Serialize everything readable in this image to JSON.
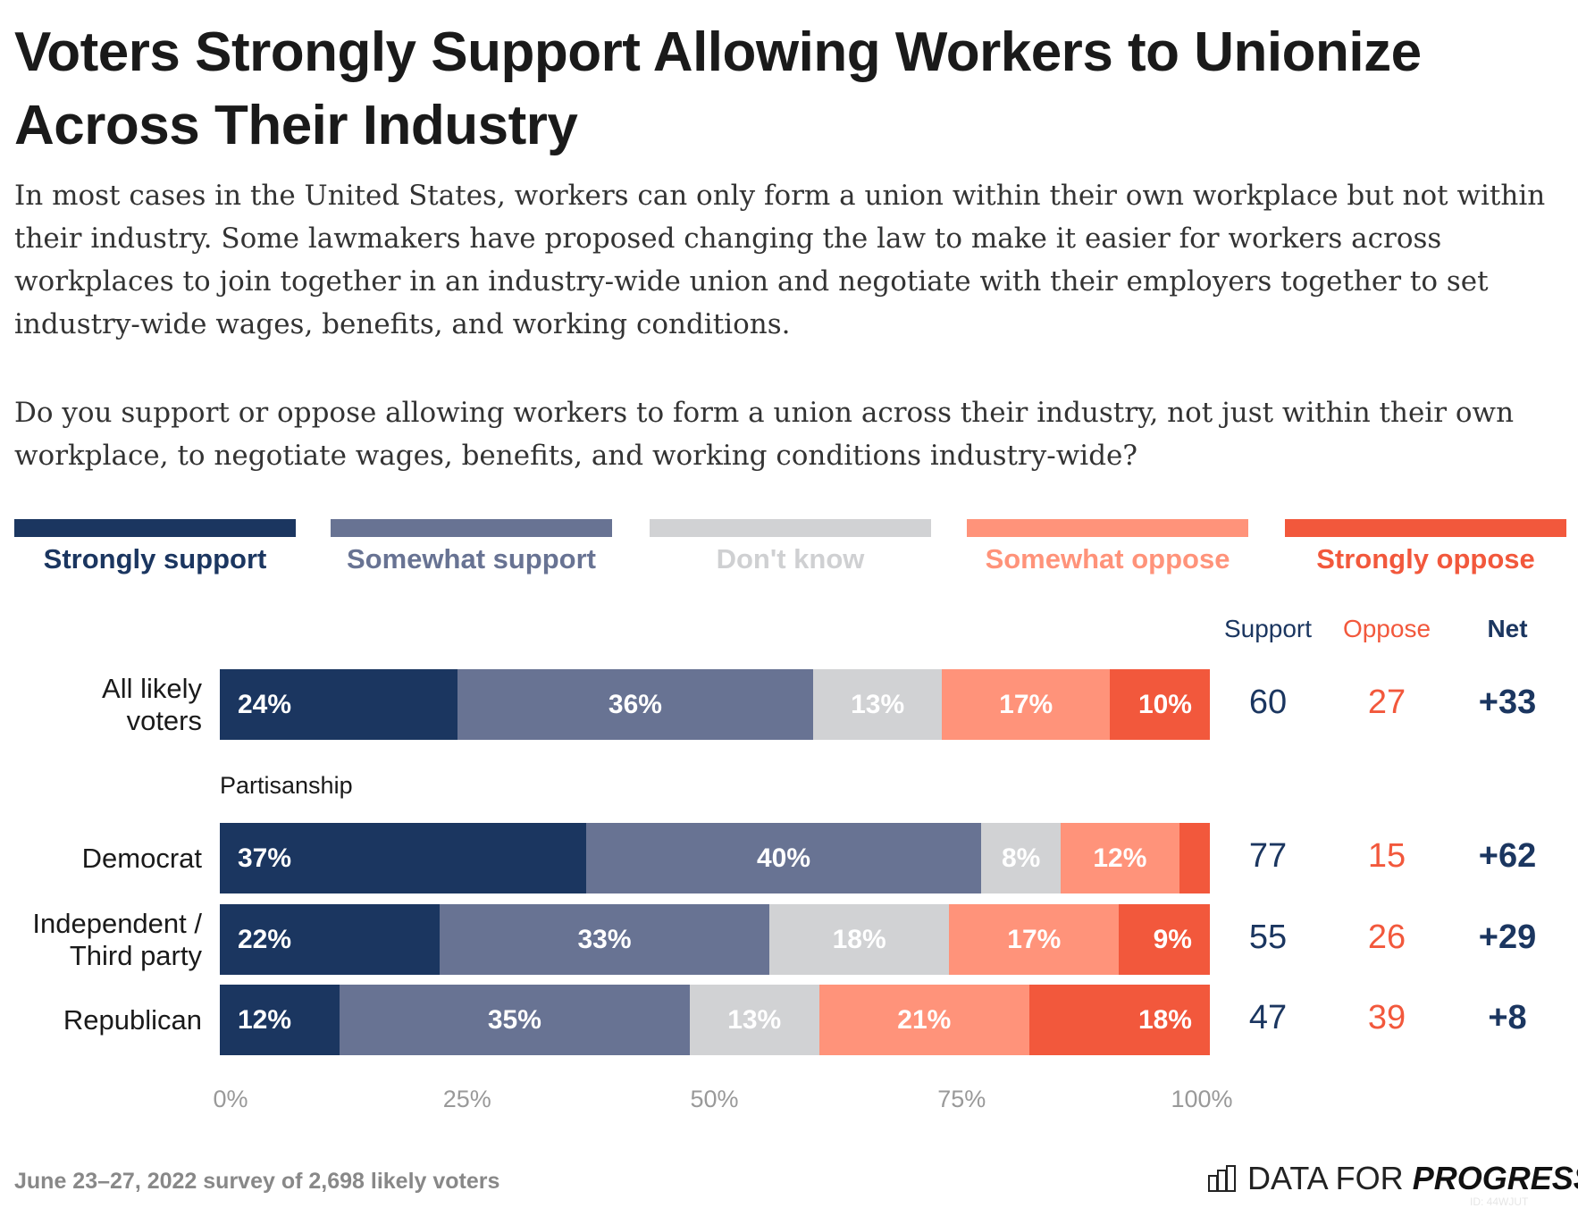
{
  "title": "Voters Strongly Support Allowing Workers to Unionize Across Their Industry",
  "intro": "In most cases in the United States, workers can only form a union within their own workplace but not within their industry. Some lawmakers have proposed changing the law to make it easier for workers across workplaces to join together in an industry-wide union and negotiate with their employers together to set industry-wide wages, benefits, and working conditions.",
  "question": "Do you support or oppose allowing workers to form a union across their industry, not just within their own workplace, to negotiate wages, benefits, and working conditions industry-wide?",
  "footer": "June 23–27, 2022 survey of 2,698 likely voters",
  "logo": {
    "text_light": "DATA FOR ",
    "text_bold": "PROGRESS",
    "id": "ID: 44WJUT"
  },
  "chart_data": {
    "type": "bar",
    "orientation": "horizontal-stacked",
    "legend": [
      "Strongly support",
      "Somewhat support",
      "Don't know",
      "Somewhat oppose",
      "Strongly oppose"
    ],
    "legend_placement": "top",
    "colors": [
      "#1b3660",
      "#687393",
      "#d1d2d4",
      "#ff937a",
      "#f2583c"
    ],
    "group_label": "Partisanship",
    "categories": [
      "All likely voters",
      "Democrat",
      "Independent / Third party",
      "Republican"
    ],
    "values": [
      [
        24,
        36,
        13,
        17,
        10
      ],
      [
        37,
        40,
        8,
        12,
        3
      ],
      [
        22,
        33,
        18,
        17,
        9
      ],
      [
        12,
        35,
        13,
        21,
        18
      ]
    ],
    "labels": [
      [
        "24%",
        "36%",
        "13%",
        "17%",
        "10%"
      ],
      [
        "37%",
        "40%",
        "8%",
        "12%",
        ""
      ],
      [
        "22%",
        "33%",
        "18%",
        "17%",
        "9%"
      ],
      [
        "12%",
        "35%",
        "13%",
        "21%",
        "18%"
      ]
    ],
    "xticks": [
      "0%",
      "25%",
      "50%",
      "75%",
      "100%"
    ],
    "xlim": [
      0,
      100
    ],
    "summary_headers": {
      "support": "Support",
      "oppose": "Oppose",
      "net": "Net"
    },
    "support": [
      "60",
      "77",
      "55",
      "47"
    ],
    "oppose": [
      "27",
      "15",
      "26",
      "39"
    ],
    "net": [
      "+33",
      "+62",
      "+29",
      "+8"
    ],
    "summary_colors": {
      "support": "#1b3660",
      "oppose": "#f2583c"
    }
  }
}
